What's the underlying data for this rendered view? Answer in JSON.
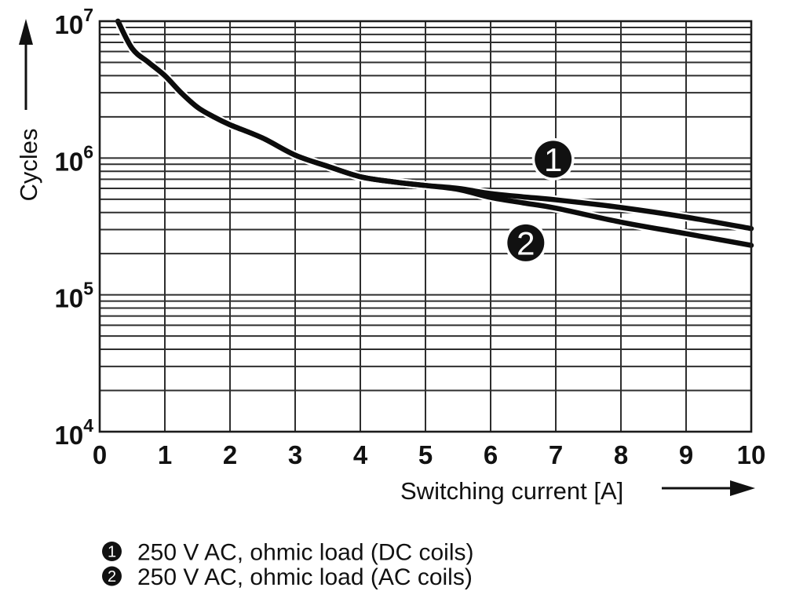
{
  "colors": {
    "background": "#ffffff",
    "ink": "#111111",
    "grid": "#2e2e2e",
    "curve": "#0c0c0c",
    "marker_fill": "#111111",
    "marker_text": "#ffffff"
  },
  "chart_data": {
    "type": "line",
    "title": "",
    "xlabel": "Switching current [A]",
    "ylabel": "Cycles",
    "x_axis": {
      "min": 0,
      "max": 10,
      "ticks": [
        0,
        1,
        2,
        3,
        4,
        5,
        6,
        7,
        8,
        9,
        10
      ],
      "tick_labels": [
        "0",
        "1",
        "2",
        "3",
        "4",
        "5",
        "6",
        "7",
        "8",
        "9",
        "10"
      ]
    },
    "y_axis": {
      "scale": "log",
      "min": 10000,
      "max": 10000000,
      "ticks": [
        10000000,
        1000000,
        100000,
        10000
      ],
      "tick_display": [
        {
          "value": 10000000,
          "base": "10",
          "exp": "7"
        },
        {
          "value": 1000000,
          "base": "10",
          "exp": "6"
        },
        {
          "value": 100000,
          "base": "10",
          "exp": "5"
        },
        {
          "value": 10000,
          "base": "10",
          "exp": "4"
        }
      ],
      "minor_gridlines": "log steps 2-9 in every decade"
    },
    "grid": {
      "vertical_every": 1,
      "horizontal": "log minor lines",
      "visible": true
    },
    "series": [
      {
        "name": "250 V AC, ohmic load (DC coils)",
        "marker": "1",
        "points": [
          [
            0.28,
            10000000
          ],
          [
            0.5,
            6300000
          ],
          [
            0.75,
            5000000
          ],
          [
            1,
            4000000
          ],
          [
            1.25,
            3000000
          ],
          [
            1.5,
            2350000
          ],
          [
            1.75,
            2000000
          ],
          [
            2,
            1750000
          ],
          [
            2.5,
            1400000
          ],
          [
            3,
            1050000
          ],
          [
            3.5,
            870000
          ],
          [
            4,
            730000
          ],
          [
            4.5,
            670000
          ],
          [
            5,
            630000
          ],
          [
            5.5,
            600000
          ],
          [
            6,
            550000
          ],
          [
            6.5,
            520000
          ],
          [
            7,
            495000
          ],
          [
            8,
            435000
          ],
          [
            9,
            370000
          ],
          [
            10,
            305000
          ]
        ]
      },
      {
        "name": "250 V AC, ohmic load (AC coils)",
        "marker": "2",
        "points": [
          [
            0.28,
            10000000
          ],
          [
            0.5,
            6300000
          ],
          [
            0.75,
            5000000
          ],
          [
            1,
            4000000
          ],
          [
            1.25,
            3000000
          ],
          [
            1.5,
            2350000
          ],
          [
            1.75,
            2000000
          ],
          [
            2,
            1750000
          ],
          [
            2.5,
            1400000
          ],
          [
            3,
            1050000
          ],
          [
            3.5,
            870000
          ],
          [
            4,
            730000
          ],
          [
            4.5,
            670000
          ],
          [
            5,
            630000
          ],
          [
            5.5,
            590000
          ],
          [
            6,
            515000
          ],
          [
            6.5,
            470000
          ],
          [
            7,
            430000
          ],
          [
            8,
            340000
          ],
          [
            9,
            280000
          ],
          [
            10,
            230000
          ]
        ]
      }
    ],
    "curve_markers": [
      {
        "label": "1",
        "x": 6.96,
        "y": 980000
      },
      {
        "label": "2",
        "x": 6.54,
        "y": 240000
      }
    ]
  },
  "legend": {
    "items": [
      {
        "marker": "1",
        "label": "250 V AC, ohmic load (DC coils)"
      },
      {
        "marker": "2",
        "label": "250 V AC, ohmic load (AC coils)"
      }
    ]
  }
}
